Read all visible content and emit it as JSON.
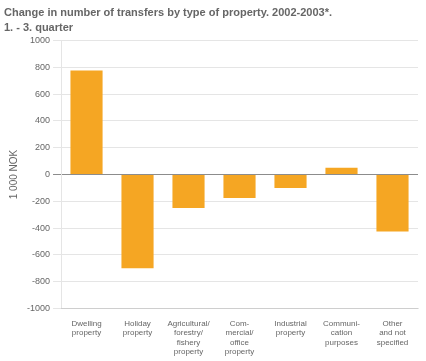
{
  "chart_data": {
    "type": "bar",
    "title": "Change in number of transfers by type of property. 2002-2003*.",
    "subtitle": "1. - 3. quarter",
    "ylabel": "1 000 NOK",
    "categories": [
      "Dwelling\nproperty",
      "Holiday\nproperty",
      "Agricultural/\nforestry/\nfishery\nproperty",
      "Com-\nmercial/\noffice\nproperty",
      "Industrial\nproperty",
      "Communi-\ncation\npurposes",
      "Other\nand not\nspecified"
    ],
    "values": [
      775,
      -700,
      -250,
      -175,
      -100,
      50,
      -425
    ],
    "color": "#F5A623",
    "ylim": [
      -1000,
      1000
    ],
    "yticks": [
      -1000,
      -800,
      -600,
      -400,
      -200,
      0,
      200,
      400,
      600,
      800,
      1000
    ],
    "grid": true
  }
}
